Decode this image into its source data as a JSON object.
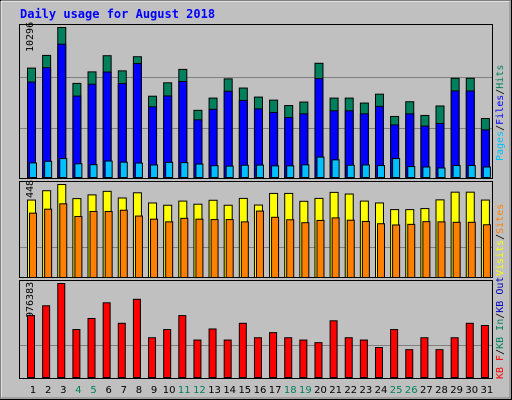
{
  "chart_data": {
    "type": "bar",
    "title": "Daily usage for August 2018",
    "colors": {
      "hits": "#00805c",
      "files": "#0000ff",
      "pages": "#00c0ff",
      "visits": "#ffff00",
      "sites": "#ff8000",
      "kbin": "#ff0000",
      "kbout": "#0000c0",
      "title": "#0000ff",
      "background": "#c0c0c0",
      "weekend": "#00805c",
      "weekday": "#000000"
    },
    "categories": [
      "1",
      "2",
      "3",
      "4",
      "5",
      "6",
      "7",
      "8",
      "9",
      "10",
      "11",
      "12",
      "13",
      "14",
      "15",
      "16",
      "17",
      "18",
      "19",
      "20",
      "21",
      "22",
      "23",
      "24",
      "25",
      "26",
      "27",
      "28",
      "29",
      "30",
      "31"
    ],
    "weekend_days": [
      "4",
      "5",
      "11",
      "12",
      "18",
      "19",
      "25",
      "26"
    ],
    "panels": [
      {
        "name": "hits-files-pages",
        "max_label": "10296",
        "ylim": [
          0,
          10296
        ],
        "legend": [
          "Pages",
          "/",
          "Files",
          "/",
          "Hits"
        ],
        "legend_colors": [
          "#00c0ff",
          "#000000",
          "#0000ff",
          "#000000",
          "#00805c"
        ],
        "series": [
          {
            "name": "Hits",
            "values": [
              7510,
              8380,
              10296,
              6460,
              7250,
              8360,
              7320,
              8290,
              5580,
              6500,
              7420,
              4610,
              5450,
              6770,
              6140,
              5520,
              5310,
              4940,
              5180,
              7840,
              5450,
              5450,
              5110,
              5720,
              4190,
              5200,
              4260,
              4910,
              6810,
              6810,
              4050
            ]
          },
          {
            "name": "Files",
            "values": [
              6550,
              7540,
              9150,
              5590,
              6400,
              7240,
              6450,
              7820,
              4850,
              5600,
              6590,
              3960,
              4680,
              5920,
              5290,
              4710,
              4460,
              4120,
              4370,
              6790,
              4580,
              4580,
              4370,
              4880,
              3610,
              4370,
              3530,
              3710,
              5940,
              5940,
              3270
            ]
          },
          {
            "name": "Pages",
            "values": [
              1000,
              1110,
              1300,
              940,
              880,
              1130,
              1050,
              990,
              860,
              1040,
              1020,
              920,
              810,
              780,
              840,
              850,
              800,
              800,
              870,
              1400,
              1210,
              840,
              860,
              820,
              1300,
              750,
              720,
              650,
              820,
              820,
              720
            ]
          }
        ]
      },
      {
        "name": "visits-sites",
        "max_label": "448",
        "ylim": [
          0,
          448
        ],
        "legend": [
          "Visits",
          "/",
          "Sites"
        ],
        "legend_colors": [
          "#ffff00",
          "#000000",
          "#ff8000"
        ],
        "series": [
          {
            "name": "Visits",
            "values": [
              373,
              418,
              448,
              380,
              398,
              415,
              383,
              408,
              359,
              348,
              368,
              353,
              372,
              348,
              381,
              349,
              405,
              405,
              367,
              381,
              410,
              402,
              368,
              359,
              327,
              327,
              332,
              374,
              411,
              411,
              373
            ]
          },
          {
            "name": "Sites",
            "values": [
              310,
              329,
              355,
              294,
              318,
              318,
              324,
              296,
              281,
              268,
              285,
              281,
              279,
              279,
              268,
              320,
              290,
              278,
              264,
              275,
              287,
              276,
              270,
              259,
              253,
              256,
              269,
              268,
              266,
              266,
              254
            ]
          }
        ]
      },
      {
        "name": "kb",
        "max_label": "976383",
        "ylim": [
          0,
          976383
        ],
        "legend": [
          "KB F",
          "/",
          "KB In",
          "/",
          "KB Out"
        ],
        "legend_colors": [
          "#ff0000",
          "#000000",
          "#00805c",
          "#000000",
          "#0000c0"
        ],
        "series": [
          {
            "name": "KB F",
            "values": [
              643000,
              745000,
              976383,
              498000,
              613000,
              776000,
              563000,
              812000,
              413000,
              498000,
              643000,
              389000,
              504000,
              389000,
              563000,
              413000,
              466000,
              413000,
              389000,
              362000,
              589000,
              413000,
              389000,
              311000,
              498000,
              289000,
              413000,
              289000,
              413000,
              563000,
              540000
            ]
          }
        ]
      }
    ]
  }
}
